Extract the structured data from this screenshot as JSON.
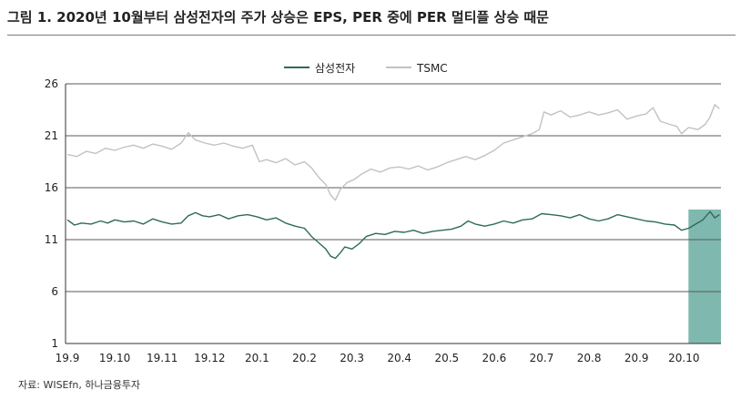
{
  "title": "그림 1. 2020년 10월부터 삼성전자의 주가 상승은 EPS, PER 중에 PER 멀티플 상승 때문",
  "source": "자료: WISEfn, 하나금융투자",
  "colors": {
    "samsung": "#2e6b5b",
    "tsmc": "#c2c2c2",
    "highlight": "#7fb8ae",
    "grid": "#5a5a5a"
  },
  "chart_data": {
    "type": "line",
    "title": "",
    "xlabel": "",
    "ylabel": "",
    "x_tick_labels": [
      "19.9",
      "19.10",
      "19.11",
      "19.12",
      "20.1",
      "20.2",
      "20.3",
      "20.4",
      "20.5",
      "20.6",
      "20.7",
      "20.8",
      "20.9",
      "20.10"
    ],
    "y_ticks": [
      1,
      6,
      11,
      16,
      21,
      26
    ],
    "ylim": [
      1,
      26
    ],
    "grid": "horizontal",
    "legend": "top-center",
    "highlight_span": {
      "from": "20.10",
      "to": "end"
    },
    "series": [
      {
        "name": "삼성전자",
        "points": [
          [
            0,
            12.9
          ],
          [
            0.15,
            12.4
          ],
          [
            0.3,
            12.6
          ],
          [
            0.5,
            12.5
          ],
          [
            0.7,
            12.8
          ],
          [
            0.85,
            12.6
          ],
          [
            1.0,
            12.9
          ],
          [
            1.2,
            12.7
          ],
          [
            1.4,
            12.8
          ],
          [
            1.6,
            12.5
          ],
          [
            1.8,
            13.0
          ],
          [
            2.0,
            12.7
          ],
          [
            2.2,
            12.5
          ],
          [
            2.4,
            12.6
          ],
          [
            2.55,
            13.3
          ],
          [
            2.7,
            13.6
          ],
          [
            2.85,
            13.3
          ],
          [
            3.0,
            13.2
          ],
          [
            3.2,
            13.4
          ],
          [
            3.4,
            13.0
          ],
          [
            3.6,
            13.3
          ],
          [
            3.8,
            13.4
          ],
          [
            4.0,
            13.2
          ],
          [
            4.2,
            12.9
          ],
          [
            4.4,
            13.1
          ],
          [
            4.6,
            12.6
          ],
          [
            4.8,
            12.3
          ],
          [
            5.0,
            12.1
          ],
          [
            5.15,
            11.3
          ],
          [
            5.3,
            10.7
          ],
          [
            5.45,
            10.1
          ],
          [
            5.55,
            9.4
          ],
          [
            5.65,
            9.2
          ],
          [
            5.75,
            9.7
          ],
          [
            5.85,
            10.3
          ],
          [
            6.0,
            10.1
          ],
          [
            6.15,
            10.6
          ],
          [
            6.3,
            11.3
          ],
          [
            6.5,
            11.6
          ],
          [
            6.7,
            11.5
          ],
          [
            6.9,
            11.8
          ],
          [
            7.1,
            11.7
          ],
          [
            7.3,
            11.9
          ],
          [
            7.5,
            11.6
          ],
          [
            7.7,
            11.8
          ],
          [
            7.9,
            11.9
          ],
          [
            8.1,
            12.0
          ],
          [
            8.3,
            12.3
          ],
          [
            8.45,
            12.8
          ],
          [
            8.6,
            12.5
          ],
          [
            8.8,
            12.3
          ],
          [
            9.0,
            12.5
          ],
          [
            9.2,
            12.8
          ],
          [
            9.4,
            12.6
          ],
          [
            9.6,
            12.9
          ],
          [
            9.8,
            13.0
          ],
          [
            10.0,
            13.5
          ],
          [
            10.2,
            13.4
          ],
          [
            10.4,
            13.3
          ],
          [
            10.6,
            13.1
          ],
          [
            10.8,
            13.4
          ],
          [
            11.0,
            13.0
          ],
          [
            11.2,
            12.8
          ],
          [
            11.4,
            13.0
          ],
          [
            11.6,
            13.4
          ],
          [
            11.8,
            13.2
          ],
          [
            12.0,
            13.0
          ],
          [
            12.2,
            12.8
          ],
          [
            12.4,
            12.7
          ],
          [
            12.6,
            12.5
          ],
          [
            12.8,
            12.4
          ],
          [
            12.95,
            11.9
          ],
          [
            13.1,
            12.1
          ],
          [
            13.25,
            12.5
          ],
          [
            13.4,
            12.9
          ],
          [
            13.55,
            13.7
          ],
          [
            13.65,
            13.1
          ],
          [
            13.75,
            13.4
          ]
        ]
      },
      {
        "name": "TSMC",
        "points": [
          [
            0,
            19.2
          ],
          [
            0.2,
            19.0
          ],
          [
            0.4,
            19.5
          ],
          [
            0.6,
            19.3
          ],
          [
            0.8,
            19.8
          ],
          [
            1.0,
            19.6
          ],
          [
            1.2,
            19.9
          ],
          [
            1.4,
            20.1
          ],
          [
            1.6,
            19.8
          ],
          [
            1.8,
            20.2
          ],
          [
            2.0,
            20.0
          ],
          [
            2.2,
            19.7
          ],
          [
            2.4,
            20.3
          ],
          [
            2.55,
            21.3
          ],
          [
            2.7,
            20.6
          ],
          [
            2.9,
            20.3
          ],
          [
            3.1,
            20.1
          ],
          [
            3.3,
            20.3
          ],
          [
            3.5,
            20.0
          ],
          [
            3.7,
            19.8
          ],
          [
            3.9,
            20.1
          ],
          [
            4.05,
            18.5
          ],
          [
            4.2,
            18.7
          ],
          [
            4.4,
            18.4
          ],
          [
            4.6,
            18.8
          ],
          [
            4.8,
            18.2
          ],
          [
            5.0,
            18.5
          ],
          [
            5.15,
            17.9
          ],
          [
            5.3,
            17.0
          ],
          [
            5.45,
            16.3
          ],
          [
            5.55,
            15.3
          ],
          [
            5.65,
            14.8
          ],
          [
            5.75,
            15.8
          ],
          [
            5.9,
            16.5
          ],
          [
            6.05,
            16.8
          ],
          [
            6.2,
            17.3
          ],
          [
            6.4,
            17.8
          ],
          [
            6.6,
            17.5
          ],
          [
            6.8,
            17.9
          ],
          [
            7.0,
            18.0
          ],
          [
            7.2,
            17.8
          ],
          [
            7.4,
            18.1
          ],
          [
            7.6,
            17.7
          ],
          [
            7.8,
            18.0
          ],
          [
            8.0,
            18.4
          ],
          [
            8.2,
            18.7
          ],
          [
            8.4,
            19.0
          ],
          [
            8.6,
            18.7
          ],
          [
            8.8,
            19.1
          ],
          [
            9.0,
            19.6
          ],
          [
            9.2,
            20.3
          ],
          [
            9.4,
            20.6
          ],
          [
            9.6,
            20.9
          ],
          [
            9.8,
            21.2
          ],
          [
            9.95,
            21.6
          ],
          [
            10.05,
            23.3
          ],
          [
            10.2,
            23.0
          ],
          [
            10.4,
            23.4
          ],
          [
            10.6,
            22.8
          ],
          [
            10.8,
            23.0
          ],
          [
            11.0,
            23.3
          ],
          [
            11.2,
            23.0
          ],
          [
            11.4,
            23.2
          ],
          [
            11.6,
            23.5
          ],
          [
            11.8,
            22.6
          ],
          [
            12.0,
            22.9
          ],
          [
            12.2,
            23.1
          ],
          [
            12.35,
            23.7
          ],
          [
            12.5,
            22.4
          ],
          [
            12.7,
            22.1
          ],
          [
            12.85,
            21.9
          ],
          [
            12.95,
            21.2
          ],
          [
            13.1,
            21.8
          ],
          [
            13.3,
            21.6
          ],
          [
            13.45,
            22.1
          ],
          [
            13.55,
            22.8
          ],
          [
            13.65,
            24.0
          ],
          [
            13.75,
            23.6
          ]
        ]
      }
    ]
  }
}
